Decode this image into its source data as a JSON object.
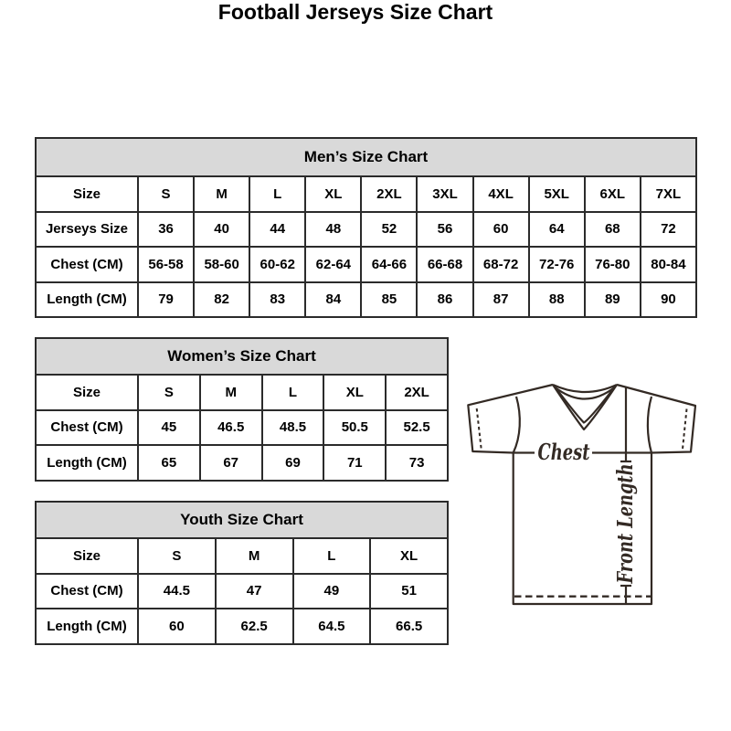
{
  "page": {
    "title": "Football Jerseys Size Chart"
  },
  "colors": {
    "table_border": "#2b2b2b",
    "table_header_bg": "#d9d9d9",
    "text": "#000000",
    "diagram_stroke": "#332a24",
    "background": "#ffffff"
  },
  "diagram": {
    "icon": "v-neck-jersey-outline",
    "chest_label": "Chest",
    "front_length_label": "Front Length"
  },
  "chart_data": [
    {
      "type": "table",
      "title": "Men’s Size Chart",
      "label_col_width": 112,
      "rows": [
        [
          "Size",
          "S",
          "M",
          "L",
          "XL",
          "2XL",
          "3XL",
          "4XL",
          "5XL",
          "6XL",
          "7XL"
        ],
        [
          "Jerseys Size",
          "36",
          "40",
          "44",
          "48",
          "52",
          "56",
          "60",
          "64",
          "68",
          "72"
        ],
        [
          "Chest (CM)",
          "56-58",
          "58-60",
          "60-62",
          "62-64",
          "64-66",
          "66-68",
          "68-72",
          "72-76",
          "76-80",
          "80-84"
        ],
        [
          "Length (CM)",
          "79",
          "82",
          "83",
          "84",
          "85",
          "86",
          "87",
          "88",
          "89",
          "90"
        ]
      ]
    },
    {
      "type": "table",
      "title": "Women’s Size Chart",
      "label_col_width": 112,
      "rows": [
        [
          "Size",
          "S",
          "M",
          "L",
          "XL",
          "2XL"
        ],
        [
          "Chest (CM)",
          "45",
          "46.5",
          "48.5",
          "50.5",
          "52.5"
        ],
        [
          "Length (CM)",
          "65",
          "67",
          "69",
          "71",
          "73"
        ]
      ]
    },
    {
      "type": "table",
      "title": "Youth Size Chart",
      "label_col_width": 112,
      "rows": [
        [
          "Size",
          "S",
          "M",
          "L",
          "XL"
        ],
        [
          "Chest (CM)",
          "44.5",
          "47",
          "49",
          "51"
        ],
        [
          "Length (CM)",
          "60",
          "62.5",
          "64.5",
          "66.5"
        ]
      ]
    }
  ]
}
